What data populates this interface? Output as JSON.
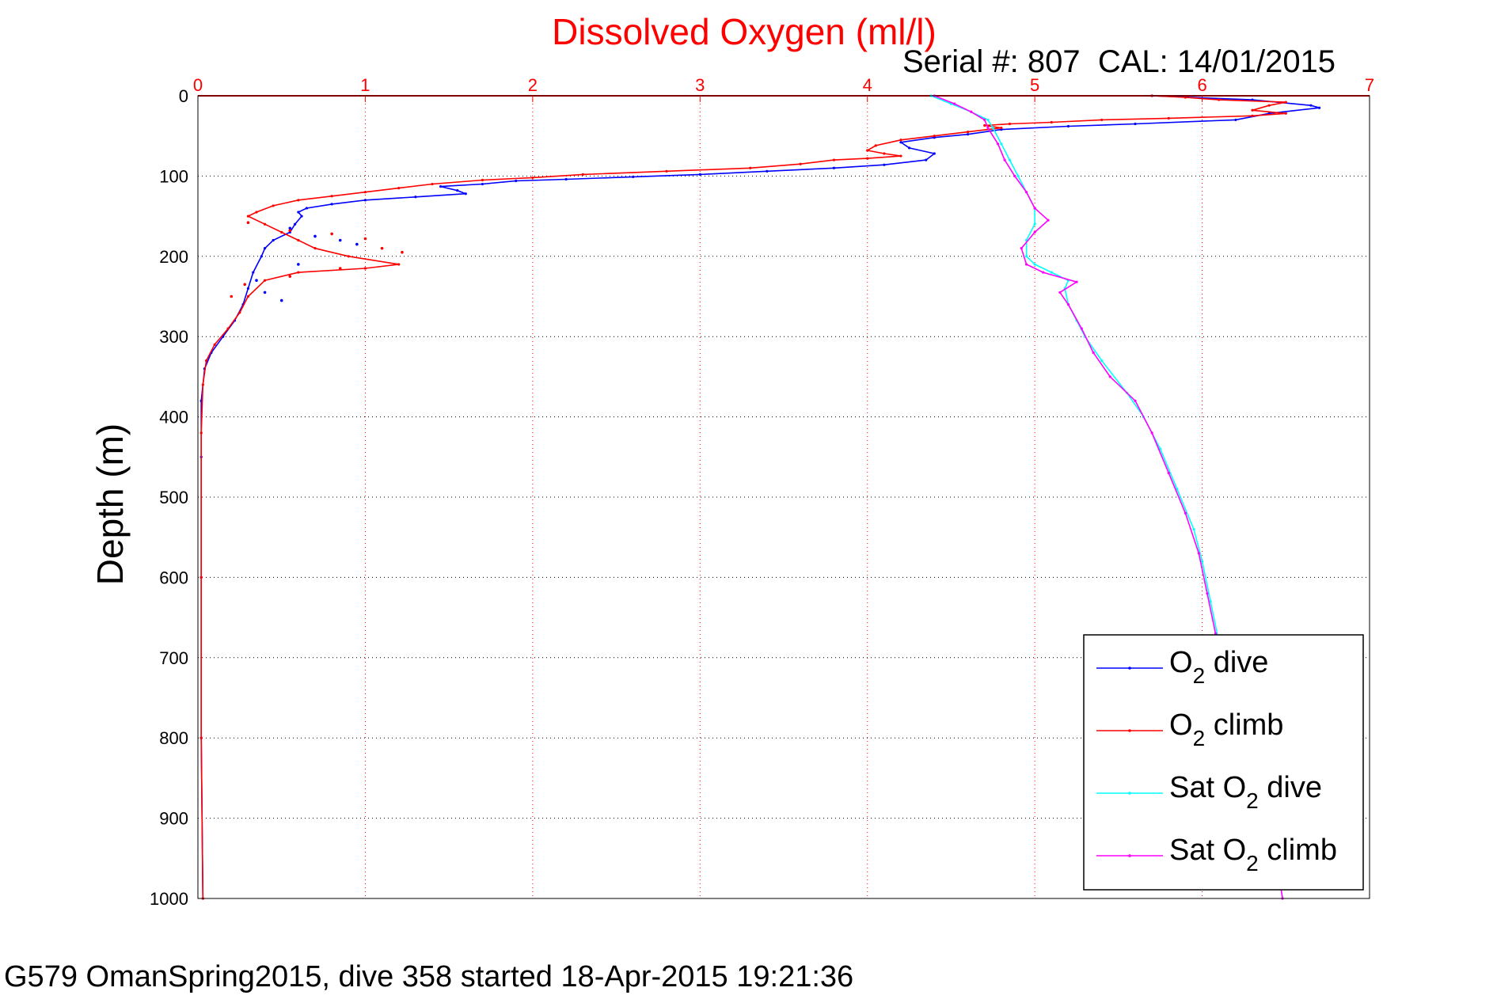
{
  "chart_data": {
    "type": "line",
    "title": "Dissolved Oxygen (ml/l)",
    "subtitle": "Serial #: 807  CAL: 14/01/2015",
    "xlabel": "",
    "ylabel": "Depth (m)",
    "xlim": [
      0,
      7
    ],
    "ylim": [
      0,
      1000
    ],
    "y_reversed": true,
    "x_axis_position": "top",
    "x_ticks": [
      0,
      1,
      2,
      3,
      4,
      5,
      6,
      7
    ],
    "y_ticks": [
      0,
      100,
      200,
      300,
      400,
      500,
      600,
      700,
      800,
      900,
      1000
    ],
    "grid": true,
    "legend_position": "bottom-right",
    "footer": "G579 OmanSpring2015, dive 358 started 18-Apr-2015 19:21:36",
    "colors": {
      "title": "#ff0000",
      "x_ticks": "#ff0000",
      "dive": "#0000ff",
      "climb": "#ff0000",
      "sat_dive": "#00ffff",
      "sat_climb": "#ff00ff"
    },
    "series": [
      {
        "name": "O2 dive",
        "legend": {
          "main": "O",
          "sub": "2",
          "rest": " dive"
        },
        "color": "#0000ff",
        "points": [
          [
            5.7,
            0
          ],
          [
            6.3,
            5
          ],
          [
            6.65,
            12
          ],
          [
            6.7,
            15
          ],
          [
            6.4,
            22
          ],
          [
            6.2,
            30
          ],
          [
            5.6,
            35
          ],
          [
            5.2,
            38
          ],
          [
            4.8,
            42
          ],
          [
            4.6,
            48
          ],
          [
            4.4,
            52
          ],
          [
            4.2,
            58
          ],
          [
            4.25,
            65
          ],
          [
            4.4,
            72
          ],
          [
            4.35,
            80
          ],
          [
            4.1,
            86
          ],
          [
            3.8,
            90
          ],
          [
            3.4,
            94
          ],
          [
            3.0,
            98
          ],
          [
            2.6,
            101
          ],
          [
            2.2,
            104
          ],
          [
            1.9,
            106
          ],
          [
            1.7,
            110
          ],
          [
            1.45,
            113
          ],
          [
            1.55,
            118
          ],
          [
            1.6,
            122
          ],
          [
            1.3,
            126
          ],
          [
            1.0,
            130
          ],
          [
            0.8,
            135
          ],
          [
            0.65,
            140
          ],
          [
            0.6,
            145
          ],
          [
            0.62,
            150
          ],
          [
            0.58,
            160
          ],
          [
            0.55,
            170
          ],
          [
            0.45,
            180
          ],
          [
            0.4,
            190
          ],
          [
            0.38,
            200
          ],
          [
            0.33,
            220
          ],
          [
            0.3,
            240
          ],
          [
            0.27,
            260
          ],
          [
            0.22,
            280
          ],
          [
            0.15,
            300
          ],
          [
            0.08,
            320
          ],
          [
            0.04,
            340
          ],
          [
            0.02,
            380
          ],
          [
            0.02,
            450
          ],
          [
            0.02,
            600
          ],
          [
            0.02,
            800
          ],
          [
            0.03,
            1000
          ]
        ]
      },
      {
        "name": "O2 climb",
        "legend": {
          "main": "O",
          "sub": "2",
          "rest": " climb"
        },
        "color": "#ff0000",
        "points": [
          [
            5.7,
            0
          ],
          [
            5.9,
            2
          ],
          [
            6.1,
            5
          ],
          [
            6.5,
            8
          ],
          [
            6.4,
            12
          ],
          [
            6.3,
            18
          ],
          [
            6.5,
            22
          ],
          [
            6.3,
            25
          ],
          [
            5.8,
            28
          ],
          [
            5.4,
            30
          ],
          [
            5.1,
            33
          ],
          [
            4.85,
            35
          ],
          [
            4.7,
            37
          ],
          [
            4.8,
            40
          ],
          [
            4.6,
            45
          ],
          [
            4.4,
            50
          ],
          [
            4.2,
            55
          ],
          [
            4.05,
            62
          ],
          [
            4.0,
            68
          ],
          [
            4.1,
            72
          ],
          [
            4.2,
            75
          ],
          [
            4.0,
            78
          ],
          [
            3.8,
            80
          ],
          [
            3.6,
            85
          ],
          [
            3.3,
            90
          ],
          [
            2.8,
            94
          ],
          [
            2.3,
            98
          ],
          [
            2.0,
            102
          ],
          [
            1.7,
            105
          ],
          [
            1.4,
            110
          ],
          [
            1.2,
            115
          ],
          [
            1.0,
            120
          ],
          [
            0.8,
            125
          ],
          [
            0.6,
            130
          ],
          [
            0.45,
            137
          ],
          [
            0.35,
            145
          ],
          [
            0.3,
            150
          ],
          [
            0.4,
            160
          ],
          [
            0.5,
            170
          ],
          [
            0.6,
            180
          ],
          [
            0.7,
            190
          ],
          [
            0.9,
            200
          ],
          [
            1.2,
            210
          ],
          [
            1.0,
            215
          ],
          [
            0.6,
            220
          ],
          [
            0.4,
            230
          ],
          [
            0.3,
            250
          ],
          [
            0.25,
            270
          ],
          [
            0.18,
            290
          ],
          [
            0.1,
            310
          ],
          [
            0.05,
            330
          ],
          [
            0.03,
            360
          ],
          [
            0.02,
            420
          ],
          [
            0.02,
            600
          ],
          [
            0.02,
            800
          ],
          [
            0.03,
            1000
          ]
        ]
      },
      {
        "name": "Sat O2 dive",
        "legend": {
          "main": "Sat O",
          "sub": "2",
          "rest": " dive"
        },
        "color": "#00ffff",
        "points": [
          [
            4.38,
            0
          ],
          [
            4.5,
            10
          ],
          [
            4.62,
            20
          ],
          [
            4.72,
            30
          ],
          [
            4.75,
            40
          ],
          [
            4.8,
            60
          ],
          [
            4.85,
            80
          ],
          [
            4.9,
            100
          ],
          [
            4.95,
            120
          ],
          [
            5.0,
            140
          ],
          [
            5.0,
            160
          ],
          [
            4.95,
            180
          ],
          [
            4.95,
            200
          ],
          [
            5.0,
            210
          ],
          [
            5.1,
            220
          ],
          [
            5.2,
            230
          ],
          [
            5.18,
            240
          ],
          [
            5.2,
            260
          ],
          [
            5.25,
            280
          ],
          [
            5.3,
            300
          ],
          [
            5.4,
            330
          ],
          [
            5.55,
            370
          ],
          [
            5.65,
            400
          ],
          [
            5.75,
            440
          ],
          [
            5.85,
            490
          ],
          [
            5.95,
            540
          ],
          [
            6.0,
            580
          ],
          [
            6.05,
            630
          ],
          [
            6.1,
            680
          ],
          [
            6.2,
            750
          ],
          [
            6.3,
            820
          ],
          [
            6.38,
            900
          ],
          [
            6.45,
            960
          ],
          [
            6.48,
            1000
          ]
        ]
      },
      {
        "name": "Sat O2 climb",
        "legend": {
          "main": "Sat O",
          "sub": "2",
          "rest": " climb"
        },
        "color": "#ff00ff",
        "points": [
          [
            4.4,
            0
          ],
          [
            4.52,
            10
          ],
          [
            4.62,
            20
          ],
          [
            4.7,
            30
          ],
          [
            4.72,
            40
          ],
          [
            4.78,
            60
          ],
          [
            4.82,
            80
          ],
          [
            4.88,
            100
          ],
          [
            4.95,
            120
          ],
          [
            5.0,
            140
          ],
          [
            5.08,
            155
          ],
          [
            5.0,
            170
          ],
          [
            4.92,
            190
          ],
          [
            4.95,
            210
          ],
          [
            5.05,
            220
          ],
          [
            5.25,
            232
          ],
          [
            5.15,
            245
          ],
          [
            5.2,
            260
          ],
          [
            5.28,
            290
          ],
          [
            5.35,
            320
          ],
          [
            5.45,
            350
          ],
          [
            5.6,
            380
          ],
          [
            5.7,
            420
          ],
          [
            5.8,
            470
          ],
          [
            5.9,
            520
          ],
          [
            5.98,
            570
          ],
          [
            6.03,
            620
          ],
          [
            6.08,
            670
          ],
          [
            6.18,
            740
          ],
          [
            6.28,
            810
          ],
          [
            6.38,
            900
          ],
          [
            6.45,
            960
          ],
          [
            6.48,
            1000
          ]
        ]
      }
    ],
    "scatter_points": [
      {
        "series": "O2 dive",
        "color": "#0000ff",
        "points": [
          [
            0.55,
            165
          ],
          [
            0.7,
            175
          ],
          [
            0.85,
            180
          ],
          [
            0.95,
            185
          ],
          [
            0.6,
            210
          ],
          [
            0.35,
            230
          ],
          [
            0.4,
            245
          ],
          [
            0.5,
            255
          ]
        ]
      },
      {
        "series": "O2 climb",
        "color": "#ff0000",
        "points": [
          [
            0.3,
            158
          ],
          [
            0.55,
            168
          ],
          [
            0.8,
            172
          ],
          [
            1.0,
            178
          ],
          [
            1.1,
            190
          ],
          [
            1.22,
            195
          ],
          [
            0.85,
            215
          ],
          [
            0.55,
            225
          ],
          [
            0.28,
            235
          ],
          [
            0.2,
            250
          ]
        ]
      }
    ]
  }
}
